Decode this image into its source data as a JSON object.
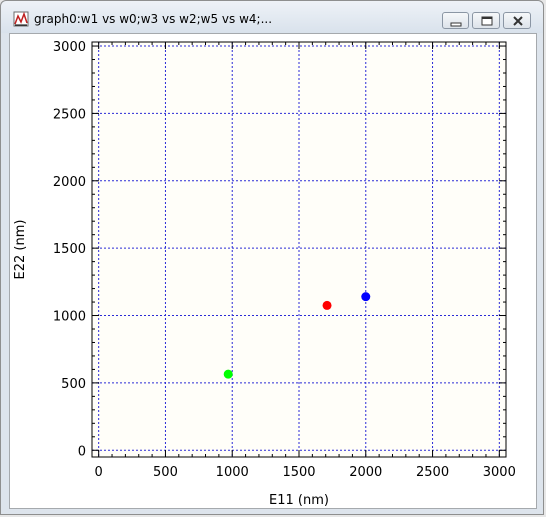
{
  "window": {
    "title": "graph0:w1 vs w0;w3 vs w2;w5 vs w4;...",
    "app_icon": "graph-icon",
    "controls": [
      "minimize-icon",
      "restore-icon",
      "close-icon"
    ]
  },
  "chart_data": {
    "type": "scatter",
    "xlabel": "E11 (nm)",
    "ylabel": "E22 (nm)",
    "xlim": [
      -50,
      3050
    ],
    "ylim": [
      -50,
      3030
    ],
    "xticks": [
      0,
      500,
      1000,
      1500,
      2000,
      2500,
      3000
    ],
    "yticks": [
      0,
      500,
      1000,
      1500,
      2000,
      2500,
      3000
    ],
    "grid": true,
    "series": [
      {
        "color": "#ff0000",
        "points": [
          [
            1710,
            1075
          ]
        ]
      },
      {
        "color": "#0000ff",
        "points": [
          [
            2000,
            1140
          ]
        ]
      },
      {
        "color": "#00ff00",
        "points": [
          [
            970,
            565
          ]
        ]
      }
    ]
  }
}
